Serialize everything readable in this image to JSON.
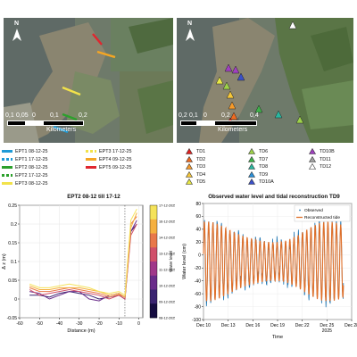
{
  "map_left": {
    "north_label": "N",
    "scale_ticks": [
      "0,1",
      "0,05",
      "0",
      "0,1",
      "0,2"
    ],
    "scale_unit": "Kilometers"
  },
  "map_right": {
    "north_label": "N",
    "scale_ticks": [
      "0,2",
      "0,1",
      "0",
      "0,2",
      "0,4"
    ],
    "scale_unit": "Kilometers"
  },
  "legend_ept": [
    {
      "label": "EPT1 08-12-25",
      "color": "#1f9bd7",
      "dash": false
    },
    {
      "label": "EPT1 17-12-25",
      "color": "#1f9bd7",
      "dash": true
    },
    {
      "label": "EPT2 08-12-25",
      "color": "#2ca02c",
      "dash": false
    },
    {
      "label": "EPT2 17-12-25",
      "color": "#2ca02c",
      "dash": true
    },
    {
      "label": "EPT3 08-12-25",
      "color": "#f2e24a",
      "dash": false
    },
    {
      "label": "EPT3 17-12-25",
      "color": "#f2e24a",
      "dash": true
    },
    {
      "label": "EPT4 09-12-25",
      "color": "#f5a623",
      "dash": false
    },
    {
      "label": "EPT5 09-12-25",
      "color": "#e0262f",
      "dash": false
    }
  ],
  "legend_td": [
    {
      "label": "TD1",
      "color": "#e02020"
    },
    {
      "label": "TD2",
      "color": "#ee6a20"
    },
    {
      "label": "TD3",
      "color": "#f59a2a"
    },
    {
      "label": "TD4",
      "color": "#f7c83a"
    },
    {
      "label": "TD5",
      "color": "#e8e845"
    },
    {
      "label": "TD6",
      "color": "#9ed24a"
    },
    {
      "label": "TD7",
      "color": "#3fb24a"
    },
    {
      "label": "TD8",
      "color": "#2ab7a0"
    },
    {
      "label": "TD9",
      "color": "#2a8fd8"
    },
    {
      "label": "TD10A",
      "color": "#3a50c8"
    },
    {
      "label": "TD10B",
      "color": "#a040c0"
    },
    {
      "label": "TD11",
      "color": "#a0a0a0"
    },
    {
      "label": "TD12",
      "color": "#ffffff"
    }
  ],
  "chart_data": [
    {
      "type": "line",
      "title": "EPT2 08-12 till 17-12",
      "xlabel": "Distance (m)",
      "ylabel": "Δ z (m)",
      "xlim": [
        -60,
        0
      ],
      "ylim": [
        -0.05,
        0.25
      ],
      "xticks": [
        "-60",
        "-50",
        "-40",
        "-30",
        "-20",
        "-10",
        "0"
      ],
      "yticks": [
        "-0.05",
        "0",
        "0.05",
        "0.1",
        "0.15",
        "0.2",
        "0.25"
      ],
      "colorbar": {
        "label": "Water level",
        "ticks": [
          "17-12-2025",
          "16-12-2025",
          "14-12-2025",
          "13-12-2025",
          "11-12-2025",
          "10-12-2025",
          "09-12-2025",
          "08-12-2025"
        ],
        "colors": [
          "#f5e35a",
          "#f5b040",
          "#e8784a",
          "#d0506a",
          "#a0388a",
          "#6a2c8a",
          "#3a2470",
          "#150c40"
        ]
      },
      "series": [
        {
          "color": "#3a2470",
          "points": [
            [
              -55,
              0.01
            ],
            [
              -50,
              0.01
            ],
            [
              -45,
              0.005
            ],
            [
              -40,
              0.015
            ],
            [
              -35,
              0.02
            ],
            [
              -30,
              0.015
            ],
            [
              -25,
              0.01
            ],
            [
              -20,
              0.0
            ],
            [
              -15,
              0.005
            ],
            [
              -10,
              0.01
            ],
            [
              -7,
              0.0
            ],
            [
              -4,
              0.18
            ],
            [
              -1,
              0.2
            ]
          ]
        },
        {
          "color": "#6a2c8a",
          "points": [
            [
              -55,
              0.02
            ],
            [
              -50,
              0.015
            ],
            [
              -45,
              0.0
            ],
            [
              -40,
              0.01
            ],
            [
              -35,
              0.02
            ],
            [
              -30,
              0.02
            ],
            [
              -25,
              0.0
            ],
            [
              -20,
              -0.005
            ],
            [
              -15,
              0.01
            ],
            [
              -10,
              0.015
            ],
            [
              -7,
              0.005
            ],
            [
              -4,
              0.18
            ],
            [
              -1,
              0.21
            ]
          ]
        },
        {
          "color": "#d0506a",
          "points": [
            [
              -55,
              0.025
            ],
            [
              -50,
              0.01
            ],
            [
              -45,
              0.015
            ],
            [
              -40,
              0.02
            ],
            [
              -35,
              0.025
            ],
            [
              -30,
              0.02
            ],
            [
              -25,
              0.015
            ],
            [
              -20,
              0.01
            ],
            [
              -15,
              0.0
            ],
            [
              -10,
              0.01
            ],
            [
              -7,
              0.0
            ],
            [
              -4,
              0.17
            ],
            [
              -1,
              0.2
            ]
          ]
        },
        {
          "color": "#e8784a",
          "points": [
            [
              -55,
              0.03
            ],
            [
              -50,
              0.02
            ],
            [
              -45,
              0.02
            ],
            [
              -40,
              0.025
            ],
            [
              -35,
              0.03
            ],
            [
              -30,
              0.025
            ],
            [
              -25,
              0.02
            ],
            [
              -20,
              0.015
            ],
            [
              -15,
              0.005
            ],
            [
              -10,
              0.012
            ],
            [
              -7,
              0.005
            ],
            [
              -4,
              0.2
            ],
            [
              -1,
              0.22
            ]
          ]
        },
        {
          "color": "#f5b040",
          "points": [
            [
              -55,
              0.035
            ],
            [
              -50,
              0.025
            ],
            [
              -45,
              0.025
            ],
            [
              -40,
              0.03
            ],
            [
              -35,
              0.03
            ],
            [
              -30,
              0.03
            ],
            [
              -25,
              0.025
            ],
            [
              -20,
              0.02
            ],
            [
              -15,
              0.01
            ],
            [
              -10,
              0.015
            ],
            [
              -7,
              0.005
            ],
            [
              -4,
              0.19
            ],
            [
              -1,
              0.23
            ]
          ]
        },
        {
          "color": "#f5e35a",
          "points": [
            [
              -55,
              0.04
            ],
            [
              -50,
              0.03
            ],
            [
              -45,
              0.03
            ],
            [
              -40,
              0.035
            ],
            [
              -35,
              0.04
            ],
            [
              -30,
              0.035
            ],
            [
              -25,
              0.03
            ],
            [
              -20,
              0.02
            ],
            [
              -15,
              0.015
            ],
            [
              -10,
              0.02
            ],
            [
              -7,
              0.01
            ],
            [
              -4,
              0.21
            ],
            [
              -1,
              0.24
            ]
          ]
        }
      ]
    },
    {
      "type": "line",
      "title": "Observed water level and tidal reconstruction TD9",
      "xlabel": "Time",
      "ylabel": "Water level (cm)",
      "ylim": [
        -100,
        80
      ],
      "yticks": [
        "-100",
        "-80",
        "-60",
        "-40",
        "-20",
        "0",
        "20",
        "40",
        "60",
        "80"
      ],
      "xticks": [
        "Dec 10",
        "Dec 13",
        "Dec 16",
        "Dec 19",
        "Dec 22",
        "Dec 25",
        "Dec 28"
      ],
      "xtick_sub": "2025",
      "legend": [
        "Observed",
        "Reconstructed tide"
      ],
      "legend_position": "top-right",
      "series": [
        {
          "name": "Observed",
          "color": "#1f77b4"
        },
        {
          "name": "Reconstructed tide",
          "color": "#e0702a"
        }
      ],
      "x_range_days": [
        10,
        28
      ],
      "data_range_days": [
        10,
        27
      ]
    }
  ]
}
